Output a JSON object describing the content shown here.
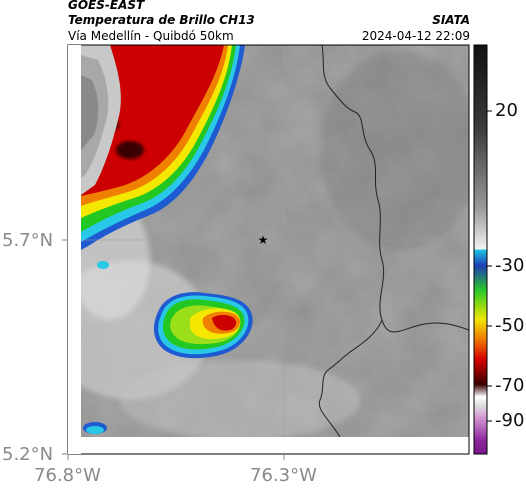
{
  "header": {
    "satellite": "GOES-EAST",
    "product": "Temperatura de Brillo CH13",
    "region": "Vía Medellín - Quibdó 50km",
    "org": "SIATA",
    "timestamp": "2024-04-12 22:09"
  },
  "axes": {
    "lat_ticks": [
      "5.7°N",
      "5.2°N"
    ],
    "lon_ticks": [
      "76.8°W",
      "76.3°W"
    ]
  },
  "colorbar": {
    "tick_labels": [
      "20",
      "-30",
      "-50",
      "-70",
      "-90"
    ],
    "tick_values": [
      20,
      -30,
      -50,
      -70,
      -90
    ],
    "range": [
      -95,
      40
    ]
  },
  "marker": {
    "symbol": "★",
    "name": "reference-point"
  },
  "colors": {
    "cloud_gray": "#8c8c8c",
    "cold_red": "#cc0000",
    "cold_yellow": "#f5e800",
    "cold_green": "#22c722",
    "cold_cyan": "#29c8e6",
    "cold_blue": "#1e5ad2",
    "very_cold_magenta": "#b040c0",
    "border": "#222222"
  }
}
